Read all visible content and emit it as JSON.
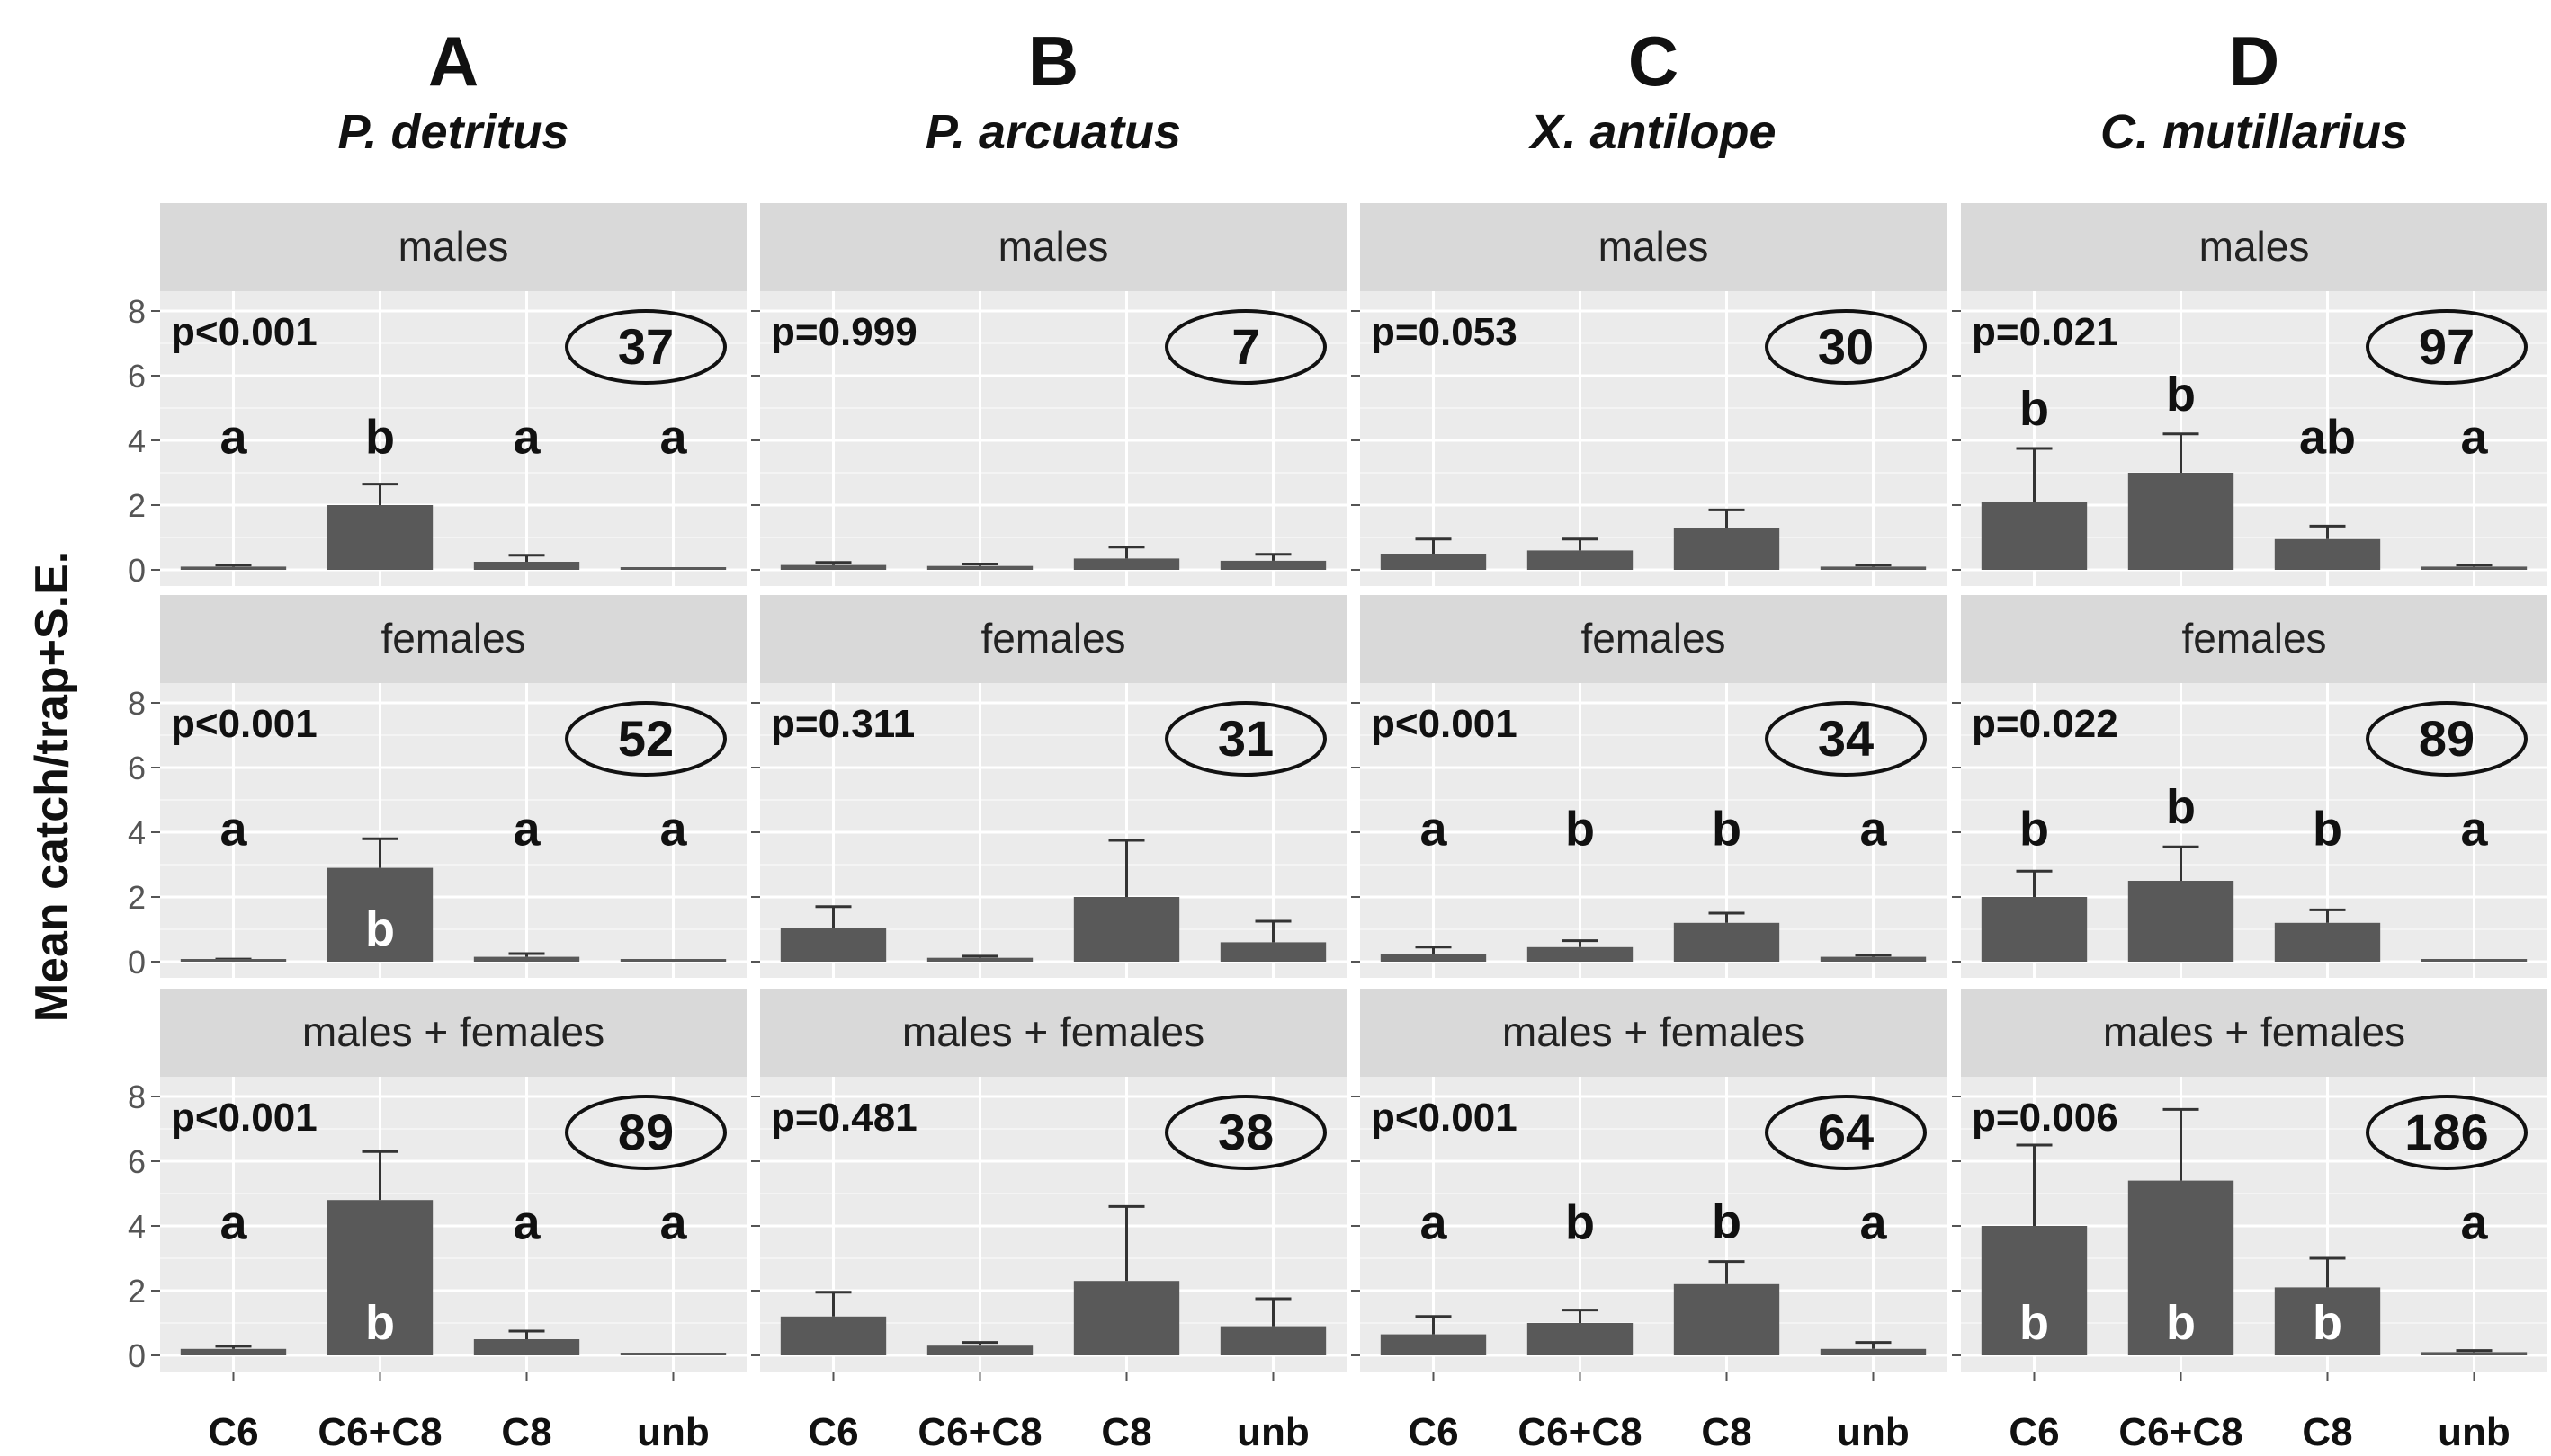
{
  "figure": {
    "ylabel": "Mean catch/trap+S.E.",
    "bar_color": "#595959",
    "panel_bg": "#EBEBEB",
    "strip_bg": "#D9D9D9",
    "grid_color": "#FFFFFF"
  },
  "chart_data": {
    "type": "bar",
    "ylim": [
      0,
      8
    ],
    "yticks": [
      0,
      2,
      4,
      6,
      8
    ],
    "categories": [
      "C6",
      "C6+C8",
      "C8",
      "unb"
    ],
    "columns": [
      {
        "letter": "A",
        "species": "P. detritus",
        "panels": [
          {
            "strip": "males",
            "p": "p<0.001",
            "n": "37",
            "values": [
              0.1,
              2.0,
              0.25,
              0.02
            ],
            "se": [
              0.05,
              0.65,
              0.2,
              0.02
            ],
            "letters": [
              "a",
              "b",
              "a",
              "a"
            ],
            "letters_inside": [
              false,
              false,
              false,
              false
            ]
          },
          {
            "strip": "females",
            "p": "p<0.001",
            "n": "52",
            "values": [
              0.05,
              2.9,
              0.15,
              0.02
            ],
            "se": [
              0.03,
              0.9,
              0.1,
              0.02
            ],
            "letters": [
              "a",
              "b",
              "a",
              "a"
            ],
            "letters_inside": [
              false,
              true,
              false,
              false
            ]
          },
          {
            "strip": "males + females",
            "p": "p<0.001",
            "n": "89",
            "values": [
              0.2,
              4.8,
              0.5,
              0.02
            ],
            "se": [
              0.08,
              1.5,
              0.25,
              0.02
            ],
            "letters": [
              "a",
              "b",
              "a",
              "a"
            ],
            "letters_inside": [
              false,
              true,
              false,
              false
            ]
          }
        ]
      },
      {
        "letter": "B",
        "species": "P. arcuatus",
        "panels": [
          {
            "strip": "males",
            "p": "p=0.999",
            "n": "7",
            "values": [
              0.15,
              0.12,
              0.35,
              0.28
            ],
            "se": [
              0.08,
              0.06,
              0.35,
              0.2
            ],
            "letters": [
              "",
              "",
              "",
              ""
            ],
            "letters_inside": [
              false,
              false,
              false,
              false
            ]
          },
          {
            "strip": "females",
            "p": "p=0.311",
            "n": "31",
            "values": [
              1.05,
              0.12,
              2.0,
              0.6
            ],
            "se": [
              0.65,
              0.05,
              1.75,
              0.65
            ],
            "letters": [
              "",
              "",
              "",
              ""
            ],
            "letters_inside": [
              false,
              false,
              false,
              false
            ]
          },
          {
            "strip": "males + females",
            "p": "p=0.481",
            "n": "38",
            "values": [
              1.2,
              0.3,
              2.3,
              0.9
            ],
            "se": [
              0.75,
              0.1,
              2.3,
              0.85
            ],
            "letters": [
              "",
              "",
              "",
              ""
            ],
            "letters_inside": [
              false,
              false,
              false,
              false
            ]
          }
        ]
      },
      {
        "letter": "C",
        "species": "X. antilope",
        "panels": [
          {
            "strip": "males",
            "p": "p=0.053",
            "n": "30",
            "values": [
              0.5,
              0.6,
              1.3,
              0.1
            ],
            "se": [
              0.45,
              0.35,
              0.55,
              0.05
            ],
            "letters": [
              "",
              "",
              "",
              ""
            ],
            "letters_inside": [
              false,
              false,
              false,
              false
            ]
          },
          {
            "strip": "females",
            "p": "p<0.001",
            "n": "34",
            "values": [
              0.25,
              0.45,
              1.2,
              0.15
            ],
            "se": [
              0.2,
              0.2,
              0.3,
              0.05
            ],
            "letters": [
              "a",
              "b",
              "b",
              "a"
            ],
            "letters_inside": [
              false,
              false,
              false,
              false
            ]
          },
          {
            "strip": "males + females",
            "p": "p<0.001",
            "n": "64",
            "values": [
              0.65,
              1.0,
              2.2,
              0.2
            ],
            "se": [
              0.55,
              0.4,
              0.7,
              0.2
            ],
            "letters": [
              "a",
              "b",
              "b",
              "a"
            ],
            "letters_inside": [
              false,
              false,
              false,
              false
            ]
          }
        ]
      },
      {
        "letter": "D",
        "species": "C. mutillarius",
        "panels": [
          {
            "strip": "males",
            "p": "p=0.021",
            "n": "97",
            "values": [
              2.1,
              3.0,
              0.95,
              0.1
            ],
            "se": [
              1.65,
              1.2,
              0.4,
              0.05
            ],
            "letters": [
              "b",
              "b",
              "ab",
              "a"
            ],
            "letters_inside": [
              false,
              false,
              false,
              false
            ]
          },
          {
            "strip": "females",
            "p": "p=0.022",
            "n": "89",
            "values": [
              2.0,
              2.5,
              1.2,
              0.02
            ],
            "se": [
              0.8,
              1.05,
              0.4,
              0.02
            ],
            "letters": [
              "b",
              "b",
              "b",
              "a"
            ],
            "letters_inside": [
              false,
              false,
              false,
              false
            ]
          },
          {
            "strip": "males + females",
            "p": "p=0.006",
            "n": "186",
            "values": [
              4.0,
              5.4,
              2.1,
              0.1
            ],
            "se": [
              2.5,
              2.2,
              0.9,
              0.05
            ],
            "letters": [
              "b",
              "b",
              "b",
              "a"
            ],
            "letters_inside": [
              true,
              true,
              true,
              false
            ]
          }
        ]
      }
    ]
  }
}
